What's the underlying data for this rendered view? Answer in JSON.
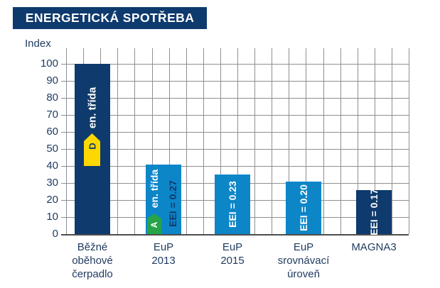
{
  "title": "ENERGETICKÁ SPOTŘEBA",
  "colors": {
    "navy": "#0e3a6d",
    "light_blue": "#0d86c8",
    "yellow": "#fcd700",
    "green": "#26a447",
    "grid": "#8f8f8f",
    "axis_line": "#4d4d4d",
    "text": "#1e3a5f",
    "white": "#ffffff"
  },
  "chart_data": {
    "type": "bar",
    "title": "ENERGETICKÁ SPOTŘEBA",
    "ylabel": "Index",
    "ylim": [
      0,
      100
    ],
    "yticks": [
      100,
      90,
      80,
      70,
      60,
      50,
      40,
      30,
      20,
      10,
      0
    ],
    "grid": true,
    "categories": [
      "Běžné oběhové čerpadlo",
      "EuP 2013",
      "EuP 2015",
      "EuP srovnávací úroveň",
      "MAGNA3"
    ],
    "category_lines": [
      [
        "Běžné",
        "oběhové",
        "čerpadlo"
      ],
      [
        "EuP",
        "2013"
      ],
      [
        "EuP",
        "2015"
      ],
      [
        "EuP",
        "srovnávací",
        "úroveň"
      ],
      [
        "MAGNA3"
      ]
    ],
    "values": [
      100,
      41,
      35,
      31,
      26
    ],
    "bar_colors": [
      "#0e3a6d",
      "#0d86c8",
      "#0d86c8",
      "#0d86c8",
      "#0e3a6d"
    ],
    "bar_labels": [
      "",
      "EEI = 0.27",
      "EEI = 0.23",
      "EEI = 0.20",
      "EEI = 0.17"
    ],
    "bar_label_colors": [
      "",
      "#0e3a6d",
      "#ffffff",
      "#ffffff",
      "#ffffff"
    ],
    "annotations": [
      {
        "bar": 0,
        "class_label": "en. třída",
        "class_letter": "D",
        "arrow_color": "#fcd700",
        "letter_color": "#0e3a6d",
        "label_color": "#ffffff"
      },
      {
        "bar": 1,
        "class_label": "en. třída",
        "class_letter": "A",
        "arrow_color": "#26a447",
        "letter_color": "#ffffff",
        "label_color": "#ffffff"
      }
    ]
  }
}
